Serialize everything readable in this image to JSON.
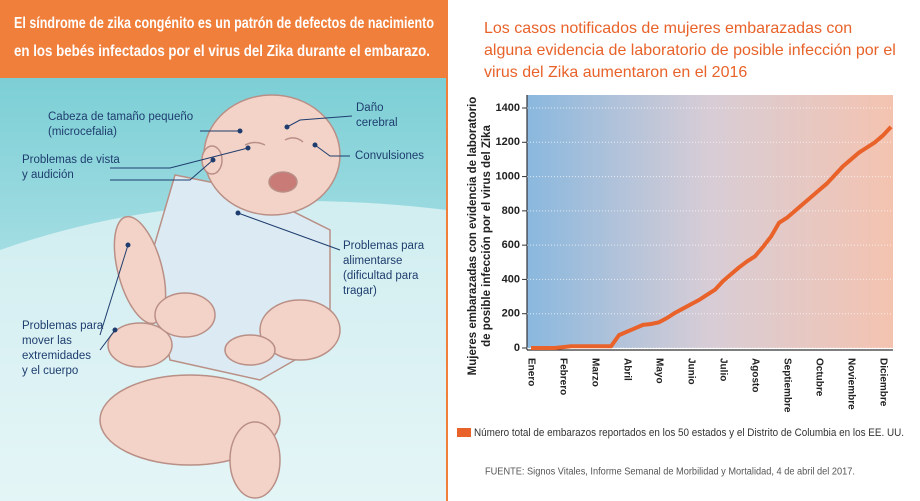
{
  "header": {
    "lines": [
      "El síndrome de zika congénito es un patrón de defectos de nacimiento",
      "en los bebés infectados por el virus del Zika durante el embarazo."
    ]
  },
  "labels": [
    {
      "lines": [
        "Cabeza de tamaño pequeño",
        "(microcefalia)"
      ]
    },
    {
      "lines": [
        "Daño",
        "cerebral"
      ]
    },
    {
      "lines": [
        "Problemas de vista",
        "y audición"
      ]
    },
    {
      "lines": [
        "Convulsiones"
      ]
    },
    {
      "lines": [
        "Problemas para",
        "alimentarse",
        "(dificultad para",
        "tragar)"
      ]
    },
    {
      "lines": [
        "Problemas para",
        "mover las",
        "extremidades",
        "y el cuerpo"
      ]
    }
  ],
  "chart_data": {
    "type": "line",
    "title": "Los casos notificados de mujeres embarazadas con alguna evidencia de laboratorio de posible infección por el virus del Zika aumentaron en el 2016",
    "ylabel": "Mujeres embarazadas con evidencia de laboratorio de posible infección por el virus del Zika",
    "categories": [
      "Enero",
      null,
      null,
      null,
      "Febrero",
      null,
      null,
      null,
      "Marzo",
      null,
      null,
      null,
      "Abril",
      null,
      null,
      null,
      "Mayo",
      null,
      null,
      null,
      "Junio",
      null,
      null,
      null,
      "Julio",
      null,
      null,
      null,
      "Agosto",
      null,
      null,
      null,
      "Septiembre",
      null,
      null,
      null,
      "Octubre",
      null,
      null,
      null,
      "Noviembre",
      null,
      null,
      null,
      "Diciembre",
      null
    ],
    "series": [
      {
        "name": "Número total de embarazos reportados en los 50 estados y el Distrito de Columbia en los EE. UU.",
        "color": "#e8622a",
        "values": [
          0,
          0,
          0,
          0,
          5,
          10,
          10,
          10,
          10,
          10,
          10,
          75,
          95,
          115,
          135,
          140,
          150,
          175,
          205,
          230,
          255,
          280,
          310,
          340,
          390,
          430,
          470,
          505,
          535,
          590,
          650,
          730,
          760,
          800,
          840,
          880,
          920,
          960,
          1010,
          1060,
          1100,
          1140,
          1170,
          1200,
          1240,
          1290
        ]
      }
    ],
    "ylim": [
      0,
      1400
    ],
    "yticks": [
      0,
      200,
      400,
      600,
      800,
      1000,
      1200,
      1400
    ],
    "grid": true,
    "source": "FUENTE: Signos Vitales, Informe Semanal de Morbilidad y Mortalidad, 4 de abril del 2017."
  }
}
